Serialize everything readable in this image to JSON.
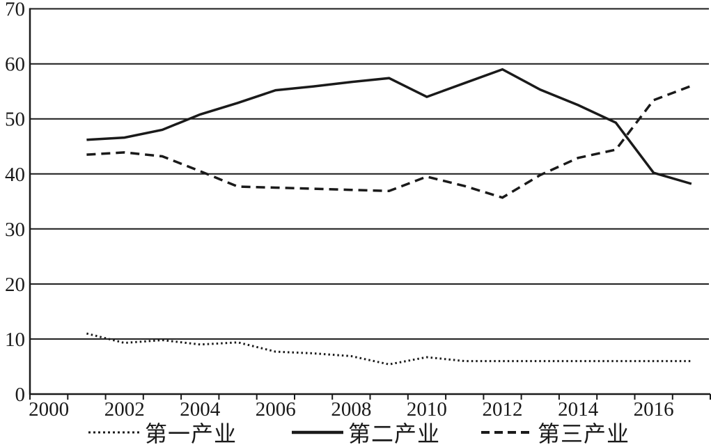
{
  "chart_data": {
    "type": "line",
    "title": "",
    "xlabel": "",
    "ylabel": "",
    "xlim": [
      2000,
      2018
    ],
    "ylim": [
      0,
      70
    ],
    "grid": "horizontal",
    "legend_position": "bottom",
    "line_color": "#1a1a1a",
    "background_color": "#ffffff",
    "y_ticks": [
      0,
      10,
      20,
      30,
      40,
      50,
      60,
      70
    ],
    "x_axis_ticks": [
      2000,
      2002,
      2004,
      2006,
      2008,
      2010,
      2012,
      2014,
      2016
    ],
    "x": [
      2001,
      2002,
      2003,
      2004,
      2005,
      2006,
      2007,
      2008,
      2009,
      2010,
      2011,
      2012,
      2013,
      2014,
      2015,
      2016,
      2017
    ],
    "series": [
      {
        "name": "第一产业",
        "style": "dotted",
        "values": [
          11.0,
          9.3,
          9.8,
          9.0,
          9.4,
          7.7,
          7.4,
          6.9,
          5.4,
          6.7,
          6.0,
          6.0,
          6.0,
          6.0,
          6.0,
          6.0,
          6.0
        ]
      },
      {
        "name": "第二产业",
        "style": "solid",
        "values": [
          46.2,
          46.6,
          48.0,
          50.8,
          52.9,
          55.2,
          55.9,
          56.7,
          57.4,
          54.0,
          56.5,
          59.0,
          55.3,
          52.5,
          49.3,
          40.2,
          38.2
        ]
      },
      {
        "name": "第三产业",
        "style": "dashed",
        "values": [
          43.5,
          43.9,
          43.2,
          40.5,
          37.7,
          37.5,
          37.3,
          37.1,
          36.9,
          39.5,
          37.8,
          35.7,
          39.8,
          42.9,
          44.4,
          53.4,
          56.0
        ]
      }
    ]
  }
}
